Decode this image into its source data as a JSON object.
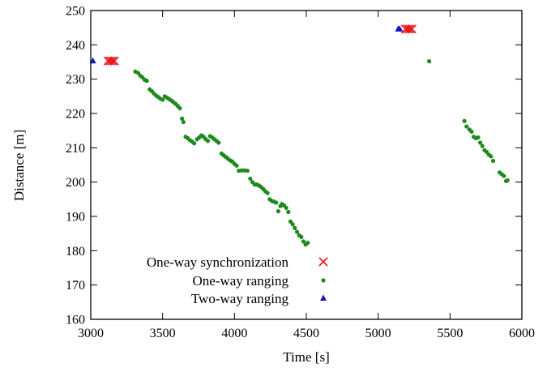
{
  "chart_data": {
    "type": "scatter",
    "title": "",
    "xlabel": "Time [s]",
    "ylabel": "Distance [m]",
    "xlim": [
      3000,
      6000
    ],
    "ylim": [
      160,
      250
    ],
    "x_ticks": [
      3000,
      3500,
      4000,
      4500,
      5000,
      5500,
      6000
    ],
    "y_ticks": [
      160,
      170,
      180,
      190,
      200,
      210,
      220,
      230,
      240,
      250
    ],
    "grid": false,
    "legend_position": "bottom-left",
    "series": [
      {
        "name": "One-way synchronization",
        "marker": "x",
        "color": "#e8141a",
        "points": [
          [
            3120,
            235.3
          ],
          [
            3135,
            235.3
          ],
          [
            3150,
            235.3
          ],
          [
            3165,
            235.3
          ],
          [
            5190,
            244.6
          ],
          [
            5205,
            244.6
          ],
          [
            5220,
            244.6
          ],
          [
            5235,
            244.6
          ]
        ]
      },
      {
        "name": "One-way ranging",
        "marker": "dot",
        "color": "#1e8a1e",
        "points": [
          [
            3310,
            232.2
          ],
          [
            3330,
            231.8
          ],
          [
            3345,
            231.0
          ],
          [
            3360,
            230.5
          ],
          [
            3375,
            229.8
          ],
          [
            3390,
            229.5
          ],
          [
            3410,
            227.0
          ],
          [
            3425,
            226.5
          ],
          [
            3440,
            225.8
          ],
          [
            3455,
            225.2
          ],
          [
            3470,
            224.8
          ],
          [
            3485,
            224.3
          ],
          [
            3500,
            224.0
          ],
          [
            3515,
            225.0
          ],
          [
            3530,
            224.6
          ],
          [
            3545,
            224.2
          ],
          [
            3560,
            223.8
          ],
          [
            3575,
            223.3
          ],
          [
            3590,
            222.8
          ],
          [
            3605,
            222.2
          ],
          [
            3620,
            221.5
          ],
          [
            3635,
            218.5
          ],
          [
            3645,
            217.5
          ],
          [
            3660,
            213.2
          ],
          [
            3675,
            212.8
          ],
          [
            3690,
            212.2
          ],
          [
            3705,
            211.8
          ],
          [
            3720,
            211.3
          ],
          [
            3740,
            212.5
          ],
          [
            3755,
            213.0
          ],
          [
            3770,
            213.6
          ],
          [
            3785,
            213.2
          ],
          [
            3800,
            212.5
          ],
          [
            3815,
            212.0
          ],
          [
            3830,
            213.4
          ],
          [
            3845,
            213.0
          ],
          [
            3860,
            212.5
          ],
          [
            3875,
            212.0
          ],
          [
            3890,
            211.5
          ],
          [
            3910,
            208.3
          ],
          [
            3925,
            207.8
          ],
          [
            3940,
            207.3
          ],
          [
            3955,
            206.8
          ],
          [
            3970,
            206.3
          ],
          [
            3985,
            206.0
          ],
          [
            4000,
            205.3
          ],
          [
            4015,
            204.8
          ],
          [
            4030,
            203.3
          ],
          [
            4050,
            203.4
          ],
          [
            4070,
            203.4
          ],
          [
            4090,
            203.3
          ],
          [
            4110,
            201.0
          ],
          [
            4125,
            200.0
          ],
          [
            4140,
            199.3
          ],
          [
            4155,
            199.3
          ],
          [
            4170,
            199.0
          ],
          [
            4185,
            198.6
          ],
          [
            4200,
            198.0
          ],
          [
            4215,
            197.3
          ],
          [
            4230,
            196.8
          ],
          [
            4245,
            195.0
          ],
          [
            4260,
            194.5
          ],
          [
            4275,
            194.3
          ],
          [
            4290,
            194.0
          ],
          [
            4305,
            191.5
          ],
          [
            4320,
            193.0
          ],
          [
            4330,
            193.6
          ],
          [
            4345,
            193.2
          ],
          [
            4360,
            192.5
          ],
          [
            4375,
            191.3
          ],
          [
            4390,
            188.5
          ],
          [
            4405,
            187.7
          ],
          [
            4420,
            186.6
          ],
          [
            4435,
            185.5
          ],
          [
            4450,
            184.5
          ],
          [
            4465,
            184.0
          ],
          [
            4480,
            182.7
          ],
          [
            4495,
            181.8
          ],
          [
            4510,
            182.3
          ],
          [
            5355,
            235.2
          ],
          [
            5600,
            217.8
          ],
          [
            5615,
            216.2
          ],
          [
            5635,
            215.3
          ],
          [
            5650,
            214.7
          ],
          [
            5665,
            213.2
          ],
          [
            5680,
            212.8
          ],
          [
            5695,
            213.0
          ],
          [
            5710,
            211.5
          ],
          [
            5725,
            210.5
          ],
          [
            5740,
            209.3
          ],
          [
            5755,
            208.8
          ],
          [
            5770,
            208.0
          ],
          [
            5785,
            207.5
          ],
          [
            5800,
            206.2
          ],
          [
            5845,
            202.8
          ],
          [
            5860,
            202.3
          ],
          [
            5875,
            201.8
          ],
          [
            5890,
            200.3
          ],
          [
            5900,
            200.5
          ]
        ]
      },
      {
        "name": "Two-way ranging",
        "marker": "triangle",
        "color": "#1414c8",
        "points": [
          [
            3015,
            235.3
          ],
          [
            5140,
            244.6
          ],
          [
            5150,
            244.6
          ]
        ]
      }
    ]
  }
}
